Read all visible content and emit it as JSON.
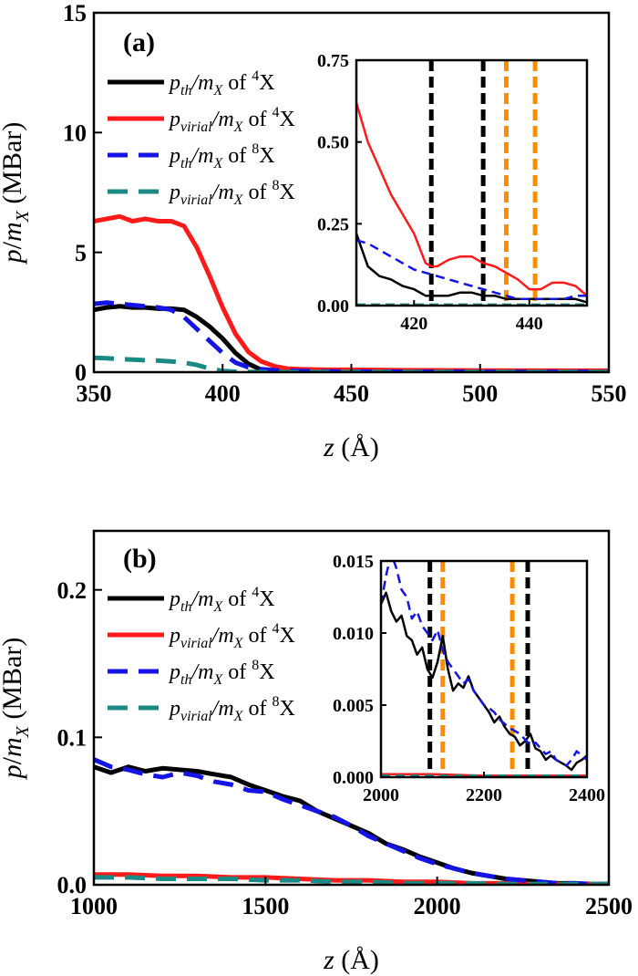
{
  "chart_data": [
    {
      "type": "line",
      "panel_label": "(a)",
      "xlabel": "z (Å)",
      "ylabel": "p/m_X (MBar)",
      "xlim": [
        350,
        550
      ],
      "ylim": [
        0,
        15
      ],
      "xticks": [
        350,
        400,
        450,
        500,
        550
      ],
      "yticks": [
        0,
        5,
        10,
        15
      ],
      "legend_position": "top-left",
      "series": [
        {
          "legend": {
            "main": "p",
            "sub": "th",
            "mid": "/m",
            "sub2": "X",
            "pre": " of ",
            "sup": "4",
            "post": "X"
          },
          "color": "#000000",
          "dash": "solid",
          "x": [
            350,
            355,
            360,
            365,
            370,
            375,
            380,
            385,
            390,
            395,
            400,
            405,
            410,
            415,
            420,
            425,
            430,
            440,
            450,
            470,
            500,
            550
          ],
          "y": [
            2.6,
            2.7,
            2.75,
            2.7,
            2.7,
            2.65,
            2.65,
            2.6,
            2.3,
            1.9,
            1.4,
            0.8,
            0.35,
            0.1,
            0.04,
            0.03,
            0.03,
            0.02,
            0.02,
            0.01,
            0.01,
            0.01
          ]
        },
        {
          "legend": {
            "main": "p",
            "sub": "virial",
            "mid": "/m",
            "sub2": "X",
            "pre": " of ",
            "sup": "4",
            "post": "X"
          },
          "color": "#ff1a1a",
          "dash": "solid",
          "x": [
            350,
            355,
            360,
            365,
            370,
            375,
            380,
            385,
            390,
            395,
            400,
            405,
            410,
            415,
            420,
            425,
            430,
            440,
            450,
            470,
            500,
            550
          ],
          "y": [
            6.3,
            6.4,
            6.5,
            6.3,
            6.4,
            6.3,
            6.3,
            6.1,
            5.2,
            4.0,
            2.7,
            1.6,
            0.85,
            0.45,
            0.25,
            0.15,
            0.12,
            0.1,
            0.1,
            0.08,
            0.07,
            0.06
          ]
        },
        {
          "legend": {
            "main": "p",
            "sub": "th",
            "mid": "/m",
            "sub2": "X",
            "pre": " of ",
            "sup": "8",
            "post": "X"
          },
          "color": "#1414e6",
          "dash": "dash",
          "x": [
            350,
            355,
            360,
            365,
            370,
            375,
            380,
            385,
            390,
            395,
            400,
            405,
            410,
            415,
            420,
            430,
            440,
            450,
            470,
            500,
            550
          ],
          "y": [
            2.85,
            2.9,
            2.85,
            2.8,
            2.75,
            2.7,
            2.6,
            2.3,
            1.8,
            1.3,
            0.8,
            0.4,
            0.2,
            0.12,
            0.08,
            0.05,
            0.03,
            0.02,
            0.02,
            0.01,
            0.01
          ]
        },
        {
          "legend": {
            "main": "p",
            "sub": "virial",
            "mid": "/m",
            "sub2": "X",
            "pre": " of ",
            "sup": "8",
            "post": "X"
          },
          "color": "#1b8a84",
          "dash": "dash",
          "x": [
            350,
            355,
            360,
            365,
            370,
            375,
            380,
            385,
            390,
            395,
            400,
            405,
            410,
            420,
            450,
            500,
            550
          ],
          "y": [
            0.6,
            0.58,
            0.55,
            0.52,
            0.5,
            0.48,
            0.45,
            0.4,
            0.3,
            0.15,
            0.05,
            0.02,
            0.01,
            0.005,
            0.005,
            0.005,
            0.005
          ]
        }
      ],
      "inset": {
        "xlim": [
          410,
          450
        ],
        "ylim": [
          0,
          0.75
        ],
        "xticks": [
          420,
          440
        ],
        "yticks": [
          0.0,
          0.25,
          0.5,
          0.75
        ],
        "ytick_labels": [
          "0.00",
          "0.25",
          "0.50",
          "0.75"
        ],
        "vlines": [
          {
            "x": 423,
            "color": "#000000"
          },
          {
            "x": 432,
            "color": "#000000"
          },
          {
            "x": 436,
            "color": "#ff8c00"
          },
          {
            "x": 441,
            "color": "#ff8c00"
          }
        ],
        "series": [
          {
            "color": "#000000",
            "dash": "solid",
            "x": [
              410,
              412,
              414,
              416,
              418,
              420,
              422,
              423,
              424,
              426,
              428,
              430,
              432,
              434,
              436,
              438,
              440,
              442,
              444,
              446,
              448,
              450
            ],
            "y": [
              0.22,
              0.12,
              0.09,
              0.08,
              0.06,
              0.05,
              0.03,
              0.03,
              0.03,
              0.03,
              0.04,
              0.04,
              0.03,
              0.03,
              0.02,
              0.02,
              0.02,
              0.02,
              0.02,
              0.02,
              0.02,
              0.01
            ]
          },
          {
            "color": "#ff1a1a",
            "dash": "solid",
            "x": [
              410,
              412,
              414,
              416,
              418,
              420,
              422,
              423,
              424,
              426,
              428,
              430,
              432,
              434,
              436,
              438,
              440,
              442,
              444,
              446,
              448,
              450
            ],
            "y": [
              0.62,
              0.5,
              0.42,
              0.34,
              0.28,
              0.22,
              0.13,
              0.12,
              0.12,
              0.14,
              0.15,
              0.15,
              0.13,
              0.12,
              0.1,
              0.08,
              0.05,
              0.05,
              0.07,
              0.07,
              0.06,
              0.03
            ]
          },
          {
            "color": "#1414e6",
            "dash": "dash",
            "x": [
              410,
              412,
              414,
              416,
              418,
              420,
              422,
              424,
              426,
              428,
              430,
              432,
              434,
              436,
              438,
              440,
              442,
              444,
              446,
              448,
              450
            ],
            "y": [
              0.2,
              0.19,
              0.17,
              0.15,
              0.13,
              0.11,
              0.1,
              0.09,
              0.08,
              0.07,
              0.06,
              0.05,
              0.04,
              0.03,
              0.02,
              0.02,
              0.02,
              0.02,
              0.02,
              0.03,
              0.03
            ]
          },
          {
            "color": "#1b8a84",
            "dash": "dash",
            "x": [
              410,
              420,
              430,
              440,
              450
            ],
            "y": [
              0.003,
              0.003,
              0.003,
              0.003,
              0.003
            ]
          }
        ]
      }
    },
    {
      "type": "line",
      "panel_label": "(b)",
      "xlabel": "z (Å)",
      "ylabel": "p/m_X (MBar)",
      "xlim": [
        1000,
        2500
      ],
      "ylim": [
        0,
        0.24
      ],
      "xticks": [
        1000,
        1500,
        2000,
        2500
      ],
      "yticks": [
        0.0,
        0.1,
        0.2
      ],
      "ytick_labels": [
        "0.0",
        "0.1",
        "0.2"
      ],
      "legend_position": "top-left",
      "series": [
        {
          "legend": {
            "main": "p",
            "sub": "th",
            "mid": "/m",
            "sub2": "X",
            "pre": " of ",
            "sup": "4",
            "post": "X"
          },
          "color": "#000000",
          "dash": "solid",
          "x": [
            1000,
            1050,
            1100,
            1150,
            1200,
            1250,
            1300,
            1350,
            1400,
            1450,
            1500,
            1550,
            1600,
            1650,
            1700,
            1750,
            1800,
            1850,
            1900,
            1950,
            2000,
            2050,
            2100,
            2150,
            2200,
            2250,
            2300,
            2350,
            2400,
            2450,
            2500
          ],
          "y": [
            0.08,
            0.076,
            0.08,
            0.077,
            0.079,
            0.078,
            0.077,
            0.075,
            0.073,
            0.068,
            0.064,
            0.06,
            0.057,
            0.05,
            0.045,
            0.04,
            0.035,
            0.028,
            0.024,
            0.019,
            0.015,
            0.011,
            0.008,
            0.006,
            0.004,
            0.003,
            0.002,
            0.001,
            0.001,
            0.0005,
            0.0005
          ]
        },
        {
          "legend": {
            "main": "p",
            "sub": "virial",
            "mid": "/m",
            "sub2": "X",
            "pre": " of ",
            "sup": "4",
            "post": "X"
          },
          "color": "#ff1a1a",
          "dash": "solid",
          "x": [
            1000,
            1100,
            1200,
            1300,
            1400,
            1500,
            1600,
            1700,
            1800,
            1900,
            2000,
            2100,
            2200,
            2300,
            2400,
            2500
          ],
          "y": [
            0.007,
            0.007,
            0.006,
            0.006,
            0.005,
            0.005,
            0.004,
            0.003,
            0.003,
            0.002,
            0.002,
            0.001,
            0.001,
            0.0005,
            0.0005,
            0.0005
          ]
        },
        {
          "legend": {
            "main": "p",
            "sub": "th",
            "mid": "/m",
            "sub2": "X",
            "pre": " of ",
            "sup": "8",
            "post": "X"
          },
          "color": "#1414e6",
          "dash": "dash",
          "x": [
            1000,
            1050,
            1100,
            1150,
            1200,
            1250,
            1300,
            1350,
            1400,
            1450,
            1500,
            1550,
            1600,
            1650,
            1700,
            1750,
            1800,
            1850,
            1900,
            1950,
            2000,
            2050,
            2100,
            2150,
            2200,
            2250,
            2300,
            2350,
            2400,
            2450,
            2500
          ],
          "y": [
            0.085,
            0.08,
            0.078,
            0.075,
            0.073,
            0.076,
            0.074,
            0.07,
            0.068,
            0.064,
            0.063,
            0.058,
            0.054,
            0.05,
            0.046,
            0.04,
            0.033,
            0.028,
            0.023,
            0.018,
            0.014,
            0.011,
            0.008,
            0.006,
            0.004,
            0.003,
            0.002,
            0.001,
            0.001,
            0.0005,
            0.0005
          ]
        },
        {
          "legend": {
            "main": "p",
            "sub": "virial",
            "mid": "/m",
            "sub2": "X",
            "pre": " of ",
            "sup": "8",
            "post": "X"
          },
          "color": "#1b8a84",
          "dash": "dash",
          "x": [
            1000,
            1100,
            1200,
            1300,
            1400,
            1500,
            1600,
            1700,
            1800,
            1900,
            2000,
            2100,
            2200,
            2300,
            2400,
            2500
          ],
          "y": [
            0.005,
            0.005,
            0.004,
            0.004,
            0.004,
            0.003,
            0.003,
            0.002,
            0.002,
            0.001,
            0.001,
            0.001,
            0.0005,
            0.0005,
            0.0005,
            0.0005
          ]
        }
      ],
      "inset": {
        "xlim": [
          2000,
          2400
        ],
        "ylim": [
          0,
          0.015
        ],
        "xticks": [
          2000,
          2200,
          2400
        ],
        "yticks": [
          0.0,
          0.005,
          0.01,
          0.015
        ],
        "ytick_labels": [
          "0.000",
          "0.005",
          "0.010",
          "0.015"
        ],
        "vlines": [
          {
            "x": 2095,
            "color": "#000000"
          },
          {
            "x": 2120,
            "color": "#ff8c00"
          },
          {
            "x": 2255,
            "color": "#ff8c00"
          },
          {
            "x": 2285,
            "color": "#000000"
          }
        ],
        "series": [
          {
            "color": "#000000",
            "dash": "solid",
            "x": [
              2000,
              2010,
              2020,
              2030,
              2040,
              2050,
              2060,
              2070,
              2080,
              2090,
              2100,
              2110,
              2120,
              2130,
              2140,
              2150,
              2160,
              2170,
              2180,
              2190,
              2200,
              2210,
              2220,
              2230,
              2240,
              2250,
              2260,
              2270,
              2280,
              2290,
              2300,
              2310,
              2320,
              2330,
              2340,
              2350,
              2360,
              2370,
              2380,
              2390,
              2400
            ],
            "y": [
              0.012,
              0.0128,
              0.0115,
              0.0108,
              0.0112,
              0.0098,
              0.0095,
              0.0085,
              0.009,
              0.0075,
              0.0069,
              0.008,
              0.0098,
              0.0075,
              0.006,
              0.0065,
              0.0062,
              0.007,
              0.006,
              0.0055,
              0.005,
              0.0045,
              0.0038,
              0.0042,
              0.0035,
              0.003,
              0.0028,
              0.0022,
              0.0025,
              0.003,
              0.002,
              0.0018,
              0.0012,
              0.0015,
              0.0012,
              0.001,
              0.0008,
              0.0005,
              0.001,
              0.0012,
              0.0015
            ]
          },
          {
            "color": "#1414e6",
            "dash": "dash",
            "x": [
              2000,
              2010,
              2020,
              2030,
              2040,
              2050,
              2060,
              2070,
              2080,
              2090,
              2100,
              2110,
              2120,
              2130,
              2140,
              2150,
              2160,
              2170,
              2180,
              2190,
              2200,
              2210,
              2220,
              2230,
              2240,
              2250,
              2260,
              2270,
              2280,
              2290,
              2300,
              2310,
              2320,
              2330,
              2340,
              2350,
              2360,
              2370,
              2380,
              2390,
              2400
            ],
            "y": [
              0.012,
              0.014,
              0.0155,
              0.0145,
              0.013,
              0.0125,
              0.011,
              0.0115,
              0.0105,
              0.01,
              0.0095,
              0.0102,
              0.0088,
              0.008,
              0.0075,
              0.007,
              0.0065,
              0.0068,
              0.006,
              0.0055,
              0.005,
              0.0048,
              0.0045,
              0.004,
              0.0037,
              0.0034,
              0.0032,
              0.003,
              0.0026,
              0.0022,
              0.0024,
              0.002,
              0.0016,
              0.0018,
              0.0012,
              0.001,
              0.0008,
              0.0012,
              0.0018,
              0.0015,
              0.0012
            ]
          },
          {
            "color": "#ff1a1a",
            "dash": "solid",
            "x": [
              2000,
              2100,
              2200,
              2300,
              2400
            ],
            "y": [
              0.0002,
              0.0002,
              0.0001,
              0.0001,
              0.0001
            ]
          },
          {
            "color": "#1b8a84",
            "dash": "dash",
            "x": [
              2000,
              2100,
              2200,
              2300,
              2400
            ],
            "y": [
              0.0001,
              0.0001,
              0.0001,
              0.0001,
              0.0001
            ]
          }
        ]
      }
    }
  ]
}
